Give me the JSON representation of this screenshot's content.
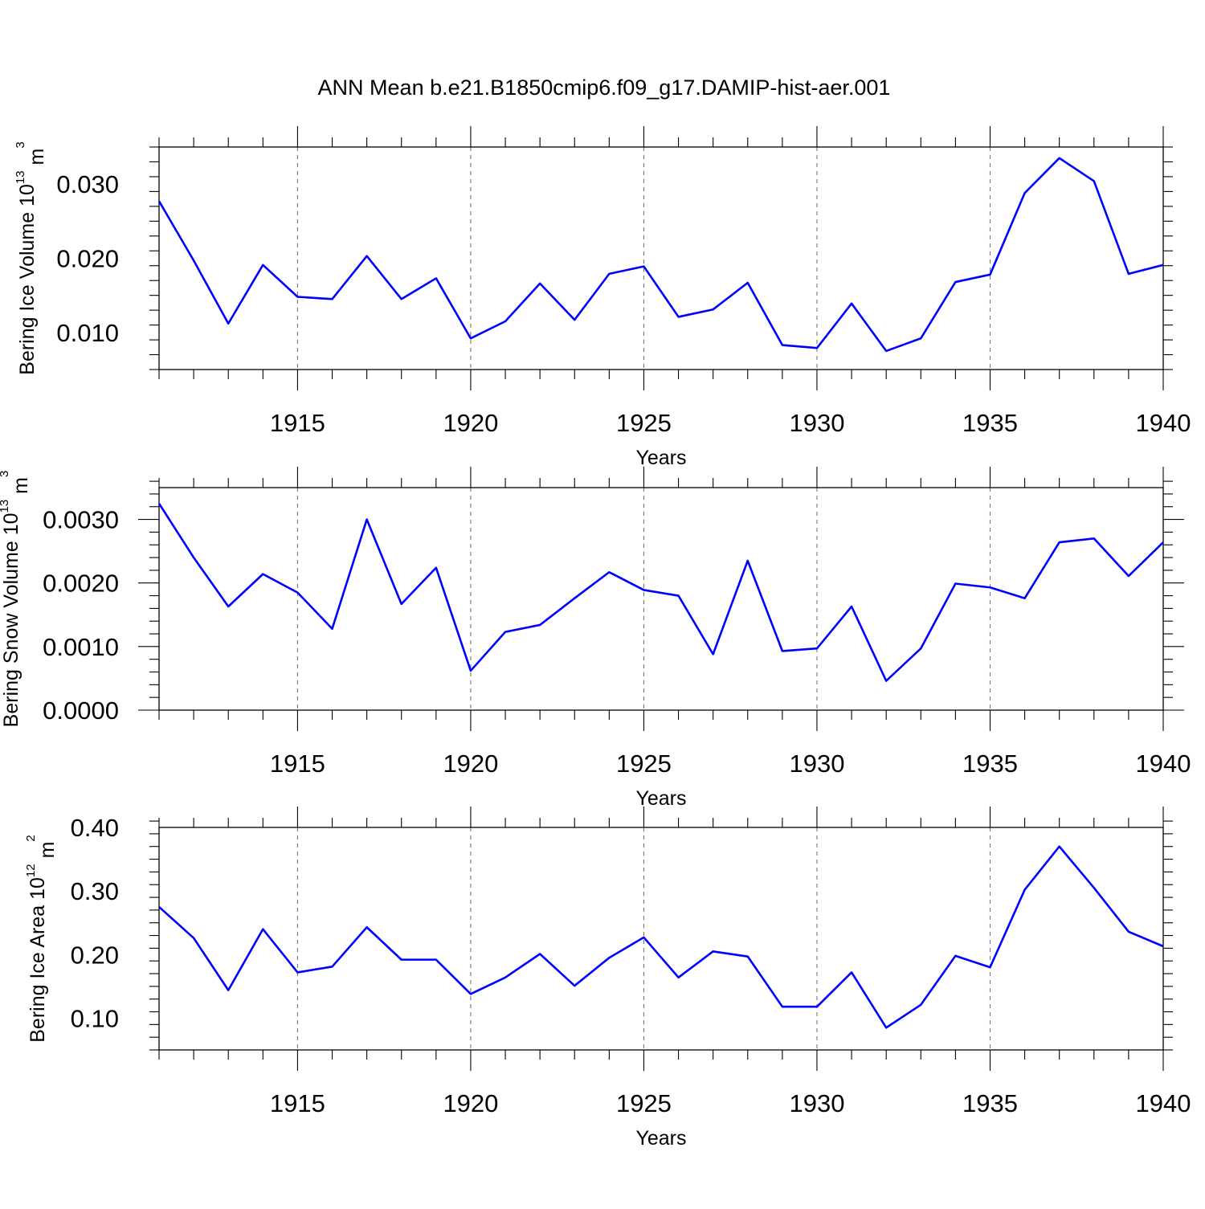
{
  "figure": {
    "title": "ANN Mean b.e21.B1850cmip6.f09_g17.DAMIP-hist-aer.001"
  },
  "colors": {
    "series": "#0000ff",
    "axes": "#000000",
    "grid": "#777777"
  },
  "chart_data": [
    {
      "type": "line",
      "ylabel": {
        "text": "Bering Ice Volume 10",
        "sup": "13",
        "unit": " m",
        "unit_sup": "3"
      },
      "xlabel": "Years",
      "xlim": [
        1911,
        1940
      ],
      "ylim": [
        0.005,
        0.035
      ],
      "xticks": [
        1915,
        1920,
        1925,
        1930,
        1935,
        1940
      ],
      "xtick_labels": [
        "1915",
        "1920",
        "1925",
        "1930",
        "1935",
        "1940"
      ],
      "yticks": [
        0.01,
        0.02,
        0.03
      ],
      "ytick_labels": [
        "0.010",
        "0.020",
        "0.030"
      ],
      "yminor_step": 0.002,
      "grid": "vertical dashed at major x ticks",
      "x": [
        1911,
        1912,
        1913,
        1914,
        1915,
        1916,
        1917,
        1918,
        1919,
        1920,
        1921,
        1922,
        1923,
        1924,
        1925,
        1926,
        1927,
        1928,
        1929,
        1930,
        1931,
        1932,
        1933,
        1934,
        1935,
        1936,
        1937,
        1938,
        1939,
        1940
      ],
      "values": [
        0.0277,
        0.0197,
        0.0112,
        0.0191,
        0.0148,
        0.0145,
        0.0203,
        0.0145,
        0.0173,
        0.0092,
        0.0115,
        0.0166,
        0.0117,
        0.0179,
        0.0189,
        0.0121,
        0.0131,
        0.0167,
        0.0083,
        0.0079,
        0.0139,
        0.0075,
        0.0092,
        0.0168,
        0.0178,
        0.0288,
        0.0335,
        0.0304,
        0.0179,
        0.0191
      ]
    },
    {
      "type": "line",
      "ylabel": {
        "text": "Bering Snow Volume 10",
        "sup": "13",
        "unit": " m",
        "unit_sup": "3"
      },
      "xlabel": "Years",
      "xlim": [
        1911,
        1940
      ],
      "ylim": [
        0.0,
        0.0035
      ],
      "xticks": [
        1915,
        1920,
        1925,
        1930,
        1935,
        1940
      ],
      "xtick_labels": [
        "1915",
        "1920",
        "1925",
        "1930",
        "1935",
        "1940"
      ],
      "yticks": [
        0.0,
        0.001,
        0.002,
        0.003
      ],
      "ytick_labels": [
        "0.0000",
        "0.0010",
        "0.0020",
        "0.0030"
      ],
      "yminor_step": 0.0002,
      "grid": "vertical dashed at major x ticks",
      "x": [
        1911,
        1912,
        1913,
        1914,
        1915,
        1916,
        1917,
        1918,
        1919,
        1920,
        1921,
        1922,
        1923,
        1924,
        1925,
        1926,
        1927,
        1928,
        1929,
        1930,
        1931,
        1932,
        1933,
        1934,
        1935,
        1936,
        1937,
        1938,
        1939,
        1940
      ],
      "values": [
        0.00325,
        0.0024,
        0.00163,
        0.00214,
        0.00185,
        0.00128,
        0.003,
        0.00167,
        0.00224,
        0.00062,
        0.00123,
        0.00134,
        0.00176,
        0.00217,
        0.00189,
        0.0018,
        0.00088,
        0.00235,
        0.00093,
        0.00097,
        0.00163,
        0.00046,
        0.00097,
        0.00199,
        0.00193,
        0.00176,
        0.00264,
        0.0027,
        0.00211,
        0.00264
      ]
    },
    {
      "type": "line",
      "ylabel": {
        "text": "Bering Ice Area 10",
        "sup": "12",
        "unit": " m",
        "unit_sup": "2"
      },
      "xlabel": "Years",
      "xlim": [
        1911,
        1940
      ],
      "ylim": [
        0.05,
        0.4
      ],
      "xticks": [
        1915,
        1920,
        1925,
        1930,
        1935,
        1940
      ],
      "xtick_labels": [
        "1915",
        "1920",
        "1925",
        "1930",
        "1935",
        "1940"
      ],
      "yticks": [
        0.1,
        0.2,
        0.3,
        0.4
      ],
      "ytick_labels": [
        "0.10",
        "0.20",
        "0.30",
        "0.40"
      ],
      "yminor_step": 0.02,
      "grid": "vertical dashed at major x ticks",
      "x": [
        1911,
        1912,
        1913,
        1914,
        1915,
        1916,
        1917,
        1918,
        1919,
        1920,
        1921,
        1922,
        1923,
        1924,
        1925,
        1926,
        1927,
        1928,
        1929,
        1930,
        1931,
        1932,
        1933,
        1934,
        1935,
        1936,
        1937,
        1938,
        1939,
        1940
      ],
      "values": [
        0.275,
        0.226,
        0.144,
        0.24,
        0.172,
        0.181,
        0.243,
        0.192,
        0.192,
        0.138,
        0.164,
        0.201,
        0.151,
        0.195,
        0.227,
        0.164,
        0.205,
        0.197,
        0.118,
        0.118,
        0.172,
        0.085,
        0.121,
        0.198,
        0.18,
        0.302,
        0.37,
        0.305,
        0.236,
        0.213
      ]
    }
  ]
}
